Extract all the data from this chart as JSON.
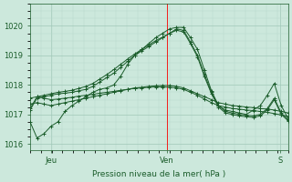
{
  "bg_color": "#cce8dc",
  "grid_color_minor": "#b8d8cc",
  "grid_color_major": "#a0c8b8",
  "line_color": "#1a5c2a",
  "xlabel": "Pression niveau de la mer( hPa )",
  "xlabel_color": "#1a5c2a",
  "tick_color": "#1a5c2a",
  "ylim": [
    1015.8,
    1020.3
  ],
  "yticks": [
    1016,
    1017,
    1018,
    1019,
    1020
  ],
  "xtick_labels": [
    "Jeu",
    "Ven",
    "S"
  ],
  "xtick_positions": [
    0.08,
    0.53,
    0.97
  ],
  "red_vline_x": 0.53,
  "series": [
    [
      1016.75,
      1016.2,
      1016.35,
      1016.6,
      1016.75,
      1017.1,
      1017.3,
      1017.45,
      1017.6,
      1017.75,
      1017.85,
      1017.9,
      1018.0,
      1018.3,
      1018.7,
      1019.0,
      1019.2,
      1019.4,
      1019.6,
      1019.75,
      1019.9,
      1019.95,
      1019.95,
      1019.6,
      1019.2,
      1018.5,
      1017.8,
      1017.3,
      1017.15,
      1017.1,
      1017.05,
      1017.0,
      1017.15,
      1017.3,
      1017.65,
      1018.05,
      1017.3,
      1016.85
    ],
    [
      1017.35,
      1017.4,
      1017.35,
      1017.3,
      1017.35,
      1017.4,
      1017.45,
      1017.5,
      1017.55,
      1017.6,
      1017.65,
      1017.7,
      1017.75,
      1017.8,
      1017.85,
      1017.9,
      1017.92,
      1017.95,
      1017.97,
      1017.98,
      1017.98,
      1017.95,
      1017.9,
      1017.8,
      1017.7,
      1017.6,
      1017.5,
      1017.4,
      1017.35,
      1017.3,
      1017.28,
      1017.25,
      1017.23,
      1017.2,
      1017.18,
      1017.15,
      1017.1,
      1017.05
    ],
    [
      1017.55,
      1017.6,
      1017.55,
      1017.5,
      1017.52,
      1017.55,
      1017.58,
      1017.62,
      1017.65,
      1017.68,
      1017.72,
      1017.75,
      1017.78,
      1017.82,
      1017.85,
      1017.88,
      1017.9,
      1017.92,
      1017.93,
      1017.93,
      1017.92,
      1017.9,
      1017.85,
      1017.75,
      1017.65,
      1017.52,
      1017.4,
      1017.3,
      1017.25,
      1017.2,
      1017.18,
      1017.15,
      1017.13,
      1017.1,
      1017.07,
      1017.03,
      1016.98,
      1016.93
    ],
    [
      1017.15,
      1017.55,
      1017.6,
      1017.65,
      1017.7,
      1017.72,
      1017.75,
      1017.8,
      1017.85,
      1017.95,
      1018.1,
      1018.25,
      1018.4,
      1018.6,
      1018.8,
      1019.0,
      1019.15,
      1019.3,
      1019.45,
      1019.6,
      1019.75,
      1019.9,
      1019.85,
      1019.45,
      1019.0,
      1018.35,
      1017.75,
      1017.3,
      1017.1,
      1017.05,
      1017.0,
      1016.97,
      1016.95,
      1017.0,
      1017.2,
      1017.55,
      1017.05,
      1016.82
    ],
    [
      1017.2,
      1017.6,
      1017.65,
      1017.7,
      1017.75,
      1017.78,
      1017.82,
      1017.88,
      1017.95,
      1018.05,
      1018.2,
      1018.35,
      1018.52,
      1018.7,
      1018.88,
      1019.05,
      1019.2,
      1019.35,
      1019.5,
      1019.62,
      1019.75,
      1019.85,
      1019.8,
      1019.4,
      1018.95,
      1018.28,
      1017.7,
      1017.25,
      1017.05,
      1017.0,
      1016.95,
      1016.92,
      1016.9,
      1016.95,
      1017.15,
      1017.5,
      1017.0,
      1016.78
    ]
  ]
}
